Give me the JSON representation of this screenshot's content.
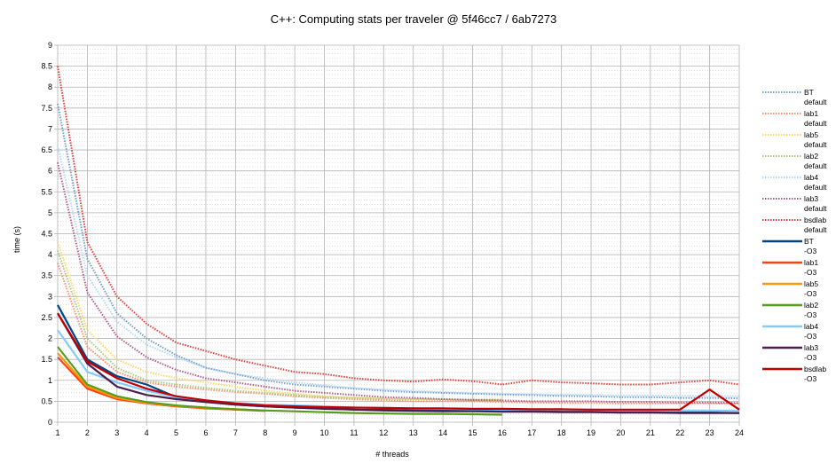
{
  "chart_data": {
    "type": "line",
    "title": "C++: Computing stats per traveler @ 5f46cc7 / 6ab7273",
    "xlabel": "# threads",
    "ylabel": "time (s)",
    "xlim": [
      1,
      24
    ],
    "ylim": [
      0,
      9
    ],
    "x_ticks": [
      "1",
      "2",
      "3",
      "4",
      "5",
      "6",
      "7",
      "8",
      "9",
      "10",
      "11",
      "12",
      "13",
      "14",
      "15",
      "16",
      "17",
      "18",
      "19",
      "20",
      "21",
      "22",
      "23",
      "24"
    ],
    "y_ticks": [
      "0",
      "0.5",
      "1",
      "1.5",
      "2",
      "2.5",
      "3",
      "3.5",
      "4",
      "4.5",
      "5",
      "5.5",
      "6",
      "6.5",
      "7",
      "7.5",
      "8",
      "8.5",
      "9"
    ],
    "grid": true,
    "legend_position": "right",
    "series": [
      {
        "name": "BT",
        "name2": "default",
        "color": "#729fcf",
        "style": "dotted",
        "x": [
          1,
          2,
          3,
          4,
          5,
          6,
          7,
          8,
          9,
          10,
          11,
          12,
          13,
          14,
          15,
          16,
          17,
          18,
          19,
          20,
          21,
          22,
          23,
          24
        ],
        "values": [
          7.6,
          3.9,
          2.6,
          2.0,
          1.6,
          1.3,
          1.15,
          1.0,
          0.9,
          0.85,
          0.8,
          0.75,
          0.72,
          0.7,
          0.68,
          0.66,
          0.65,
          0.63,
          0.62,
          0.6,
          0.6,
          0.58,
          0.58,
          0.57
        ]
      },
      {
        "name": "lab1",
        "name2": "default",
        "color": "#ff8f6c",
        "style": "dotted",
        "x": [
          1,
          2,
          3,
          4,
          5,
          6,
          7,
          8,
          9,
          10,
          11,
          12,
          13,
          14,
          15,
          16,
          17,
          18,
          19,
          20,
          21,
          22,
          23,
          24
        ],
        "values": [
          3.8,
          1.8,
          1.2,
          0.95,
          0.85,
          0.78,
          0.72,
          0.68,
          0.62,
          0.58,
          0.55,
          0.52,
          0.5,
          0.5,
          0.5,
          0.48,
          0.47,
          0.46,
          0.46,
          0.45,
          0.45,
          0.45,
          0.45,
          0.44
        ]
      },
      {
        "name": "lab5",
        "name2": "default",
        "color": "#ffd966",
        "style": "dotted",
        "x": [
          1,
          2,
          3,
          4,
          5,
          6,
          7,
          8,
          9,
          10,
          11,
          12,
          13,
          14,
          15,
          16
        ],
        "values": [
          4.3,
          2.2,
          1.5,
          1.2,
          1.05,
          0.95,
          0.85,
          0.75,
          0.68,
          0.62,
          0.58,
          0.56,
          0.55,
          0.55,
          0.55,
          0.55
        ]
      },
      {
        "name": "lab2",
        "name2": "default",
        "color": "#a8c97f",
        "style": "dotted",
        "x": [
          1,
          2,
          3,
          4,
          5,
          6,
          7,
          8,
          9,
          10,
          11,
          12,
          13,
          14,
          15,
          16
        ],
        "values": [
          4.1,
          2.0,
          1.3,
          1.0,
          0.9,
          0.82,
          0.75,
          0.7,
          0.65,
          0.6,
          0.58,
          0.56,
          0.55,
          0.54,
          0.53,
          0.52
        ]
      },
      {
        "name": "lab4",
        "name2": "default",
        "color": "#b4d9f5",
        "style": "dotted",
        "x": [
          1,
          2,
          3,
          4,
          5,
          6,
          7,
          8,
          9,
          10,
          11,
          12,
          13,
          14,
          15,
          16,
          17,
          18,
          19,
          20,
          21,
          22,
          23,
          24
        ],
        "values": [
          6.6,
          3.5,
          2.4,
          1.85,
          1.55,
          1.3,
          1.15,
          1.05,
          0.95,
          0.88,
          0.82,
          0.78,
          0.75,
          0.72,
          0.7,
          0.68,
          0.67,
          0.66,
          0.65,
          0.64,
          0.64,
          0.63,
          0.63,
          0.62
        ]
      },
      {
        "name": "lab3",
        "name2": "default",
        "color": "#b45d8c",
        "style": "dotted",
        "x": [
          1,
          2,
          3,
          4,
          5,
          6,
          7,
          8,
          9,
          10,
          11,
          12,
          13,
          14,
          15,
          16,
          17,
          18,
          19,
          20,
          21,
          22,
          23,
          24
        ],
        "values": [
          6.2,
          3.1,
          2.05,
          1.55,
          1.25,
          1.05,
          0.95,
          0.85,
          0.75,
          0.7,
          0.65,
          0.6,
          0.58,
          0.55,
          0.53,
          0.52,
          0.5,
          0.5,
          0.5,
          0.48,
          0.48,
          0.47,
          0.47,
          0.46
        ]
      },
      {
        "name": "bsdlab",
        "name2": "default",
        "color": "#e0403c",
        "style": "dotted",
        "x": [
          1,
          2,
          3,
          4,
          5,
          6,
          7,
          8,
          9,
          10,
          11,
          12,
          13,
          14,
          15,
          16,
          17,
          18,
          19,
          20,
          21,
          22,
          23,
          24
        ],
        "values": [
          8.5,
          4.3,
          3.0,
          2.35,
          1.9,
          1.7,
          1.5,
          1.35,
          1.2,
          1.15,
          1.05,
          1.0,
          0.97,
          1.02,
          0.98,
          0.9,
          1.0,
          0.95,
          0.93,
          0.9,
          0.9,
          0.95,
          1.0,
          0.9
        ]
      },
      {
        "name": "BT",
        "name2": "-O3",
        "color": "#004586",
        "style": "solid",
        "x": [
          1,
          2,
          3,
          4,
          5,
          6,
          7,
          8,
          9,
          10,
          11,
          12,
          13,
          14,
          15,
          16,
          17,
          18,
          19,
          20,
          21,
          22,
          23,
          24
        ],
        "values": [
          2.8,
          1.5,
          1.1,
          0.9,
          0.6,
          0.5,
          0.42,
          0.38,
          0.35,
          0.33,
          0.3,
          0.3,
          0.28,
          0.28,
          0.27,
          0.26,
          0.26,
          0.25,
          0.25,
          0.24,
          0.24,
          0.23,
          0.23,
          0.22
        ]
      },
      {
        "name": "lab1",
        "name2": "-O3",
        "color": "#ff420e",
        "style": "solid",
        "x": [
          1,
          2,
          3,
          4,
          5,
          6,
          7,
          8
        ],
        "values": [
          1.55,
          0.8,
          0.55,
          0.45,
          0.38,
          0.33,
          0.3,
          0.27
        ]
      },
      {
        "name": "lab5",
        "name2": "-O3",
        "color": "#ff950e",
        "style": "solid",
        "x": [
          1,
          2,
          3,
          4,
          5,
          6,
          7,
          8
        ],
        "values": [
          1.65,
          0.85,
          0.58,
          0.46,
          0.39,
          0.34,
          0.31,
          0.28
        ]
      },
      {
        "name": "lab2",
        "name2": "-O3",
        "color": "#579d1c",
        "style": "solid",
        "x": [
          1,
          2,
          3,
          4,
          5,
          6,
          7,
          8,
          9,
          10,
          11,
          12,
          13,
          14,
          15,
          16
        ],
        "values": [
          1.8,
          0.9,
          0.62,
          0.48,
          0.4,
          0.35,
          0.31,
          0.28,
          0.26,
          0.24,
          0.22,
          0.21,
          0.2,
          0.2,
          0.19,
          0.18
        ]
      },
      {
        "name": "lab4",
        "name2": "-O3",
        "color": "#83caff",
        "style": "solid",
        "x": [
          1,
          2,
          3,
          4,
          5,
          6,
          7,
          8,
          9,
          10,
          11,
          12,
          13,
          14,
          15,
          16,
          17,
          18,
          19,
          20,
          21,
          22,
          23,
          24
        ],
        "values": [
          2.2,
          1.2,
          0.95,
          0.75,
          0.6,
          0.52,
          0.46,
          0.42,
          0.4,
          0.38,
          0.35,
          0.34,
          0.33,
          0.32,
          0.31,
          0.3,
          0.3,
          0.3,
          0.3,
          0.29,
          0.29,
          0.28,
          0.28,
          0.27
        ]
      },
      {
        "name": "lab3",
        "name2": "-O3",
        "color": "#4b1f4b",
        "style": "solid",
        "x": [
          1,
          2,
          3,
          4,
          5,
          6,
          7,
          8,
          9,
          10,
          11,
          12,
          13,
          14,
          15,
          16,
          17,
          18,
          19,
          20,
          21,
          22,
          23,
          24
        ],
        "values": [
          2.6,
          1.4,
          0.85,
          0.65,
          0.55,
          0.48,
          0.42,
          0.38,
          0.35,
          0.32,
          0.3,
          0.28,
          0.27,
          0.26,
          0.26,
          0.25,
          0.25,
          0.24,
          0.24,
          0.23,
          0.23,
          0.22,
          0.22,
          0.22
        ]
      },
      {
        "name": "bsdlab",
        "name2": "-O3",
        "color": "#c00000",
        "style": "solid",
        "x": [
          1,
          2,
          3,
          4,
          5,
          6,
          7,
          8,
          9,
          10,
          11,
          12,
          13,
          14,
          15,
          16,
          17,
          18,
          19,
          20,
          21,
          22,
          23,
          24
        ],
        "values": [
          2.6,
          1.45,
          1.05,
          0.8,
          0.62,
          0.52,
          0.45,
          0.4,
          0.38,
          0.36,
          0.35,
          0.34,
          0.33,
          0.33,
          0.32,
          0.32,
          0.31,
          0.31,
          0.3,
          0.3,
          0.3,
          0.3,
          0.78,
          0.3
        ]
      }
    ]
  }
}
